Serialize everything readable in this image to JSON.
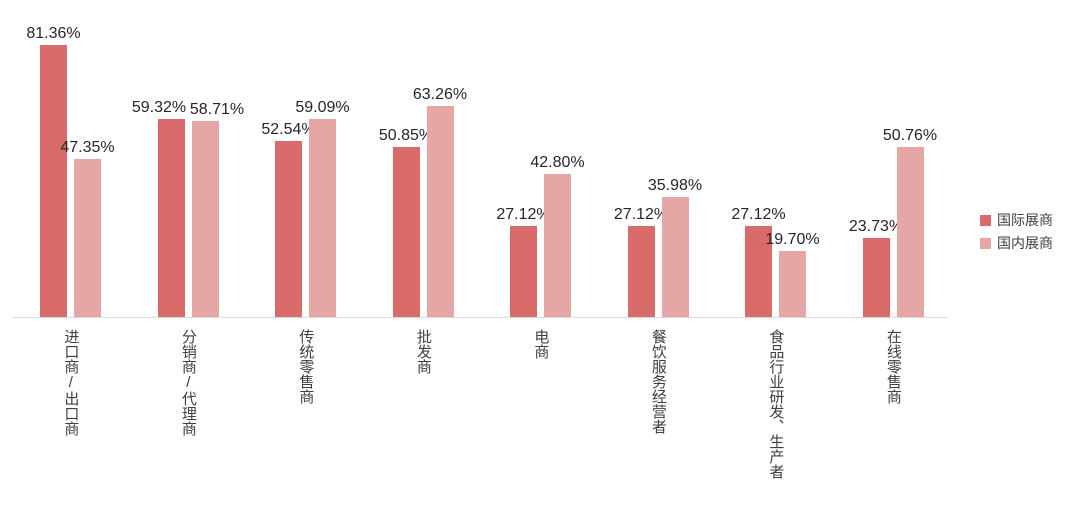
{
  "chart_data": {
    "type": "bar",
    "categories": [
      "进口商/出口商",
      "分销商/代理商",
      "传统零售商",
      "批发商",
      "电商",
      "餐饮服务经营者",
      "食品行业研发、生产者",
      "在线零售商"
    ],
    "series": [
      {
        "name": "国际展商",
        "color": "#D96B6B",
        "values": [
          81.36,
          59.32,
          52.54,
          50.85,
          27.12,
          27.12,
          27.12,
          23.73
        ]
      },
      {
        "name": "国内展商",
        "color": "#E5A6A6",
        "values": [
          47.35,
          58.71,
          59.09,
          63.26,
          42.8,
          35.98,
          19.7,
          50.76
        ]
      }
    ],
    "value_labels": {
      "国际展商": [
        "81.36%",
        "59.32%",
        "52.54%",
        "50.85%",
        "27.12%",
        "27.12%",
        "27.12%",
        "23.73%"
      ],
      "国内展商": [
        "47.35%",
        "58.71%",
        "59.09%",
        "63.26%",
        "42.80%",
        "35.98%",
        "19.70%",
        "50.76%"
      ]
    },
    "title": "",
    "xlabel": "",
    "ylabel": "",
    "ylim": [
      0,
      100
    ],
    "grid": false,
    "y_axis_visible": false,
    "legend_position": "right",
    "colors": {
      "background": "#FFFFFF",
      "axis_line": "#D9D9D9",
      "value_label_text": "#262626",
      "category_label_text": "#404040",
      "legend_label_text": "#404040"
    }
  }
}
